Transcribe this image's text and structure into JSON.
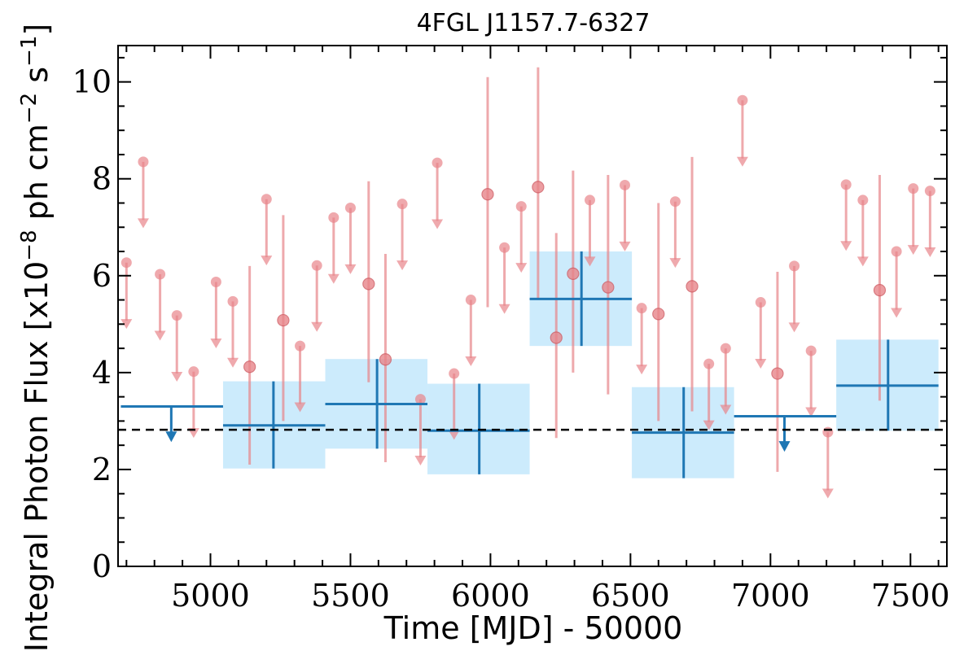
{
  "chart_data": {
    "type": "scatter",
    "title": "4FGL J1157.7-6327",
    "xlabel": "Time [MJD] - 50000",
    "ylabel": "Integral Photon Flux [x10",
    "ylabel_exp1": "−8",
    "ylabel_mid": " ph cm",
    "ylabel_exp2": "−2",
    "ylabel_end": " s",
    "ylabel_exp3": "−1",
    "ylabel_close": "]",
    "xlim": [
      4670,
      7630
    ],
    "ylim": [
      0,
      10.75
    ],
    "xticks": [
      5000,
      5500,
      6000,
      6500,
      7000,
      7500
    ],
    "yticks": [
      0,
      2,
      4,
      6,
      8,
      10
    ],
    "mean_flux": 2.82,
    "colors": {
      "short_bins": "#e8858a",
      "long_bins": "#1f77b4",
      "long_bins_fill": "#bfe6fb",
      "mean_line": "#000000"
    },
    "short_bins": {
      "detections": [
        {
          "x": 5140,
          "y": 4.12,
          "ylo": 2.1,
          "yhi": 6.2
        },
        {
          "x": 5260,
          "y": 5.08,
          "ylo": 3.0,
          "yhi": 7.25
        },
        {
          "x": 5565,
          "y": 5.83,
          "ylo": 3.8,
          "yhi": 7.95
        },
        {
          "x": 5625,
          "y": 4.27,
          "ylo": 2.15,
          "yhi": 6.45
        },
        {
          "x": 5990,
          "y": 7.68,
          "ylo": 5.35,
          "yhi": 10.1
        },
        {
          "x": 6170,
          "y": 7.83,
          "ylo": 5.5,
          "yhi": 10.3
        },
        {
          "x": 6235,
          "y": 4.72,
          "ylo": 2.65,
          "yhi": 6.88
        },
        {
          "x": 6295,
          "y": 6.04,
          "ylo": 4.0,
          "yhi": 8.17
        },
        {
          "x": 6420,
          "y": 5.76,
          "ylo": 3.55,
          "yhi": 8.08
        },
        {
          "x": 6600,
          "y": 5.21,
          "ylo": 3.0,
          "yhi": 7.5
        },
        {
          "x": 6720,
          "y": 5.78,
          "ylo": 3.2,
          "yhi": 8.45
        },
        {
          "x": 7025,
          "y": 3.98,
          "ylo": 1.95,
          "yhi": 6.08
        },
        {
          "x": 7390,
          "y": 5.7,
          "ylo": 3.42,
          "yhi": 8.08
        }
      ],
      "upper_limits": [
        {
          "x": 4700,
          "y": 6.27
        },
        {
          "x": 4760,
          "y": 8.35
        },
        {
          "x": 4820,
          "y": 6.03
        },
        {
          "x": 4880,
          "y": 5.18
        },
        {
          "x": 4940,
          "y": 4.02
        },
        {
          "x": 5020,
          "y": 5.87
        },
        {
          "x": 5080,
          "y": 5.47
        },
        {
          "x": 5200,
          "y": 7.58
        },
        {
          "x": 5320,
          "y": 4.55
        },
        {
          "x": 5380,
          "y": 6.21
        },
        {
          "x": 5440,
          "y": 7.2
        },
        {
          "x": 5500,
          "y": 7.4
        },
        {
          "x": 5685,
          "y": 7.48
        },
        {
          "x": 5750,
          "y": 3.45
        },
        {
          "x": 5810,
          "y": 8.33
        },
        {
          "x": 5870,
          "y": 3.98
        },
        {
          "x": 5930,
          "y": 5.5
        },
        {
          "x": 6050,
          "y": 6.58
        },
        {
          "x": 6110,
          "y": 7.43
        },
        {
          "x": 6355,
          "y": 7.56
        },
        {
          "x": 6480,
          "y": 7.87
        },
        {
          "x": 6540,
          "y": 5.33
        },
        {
          "x": 6660,
          "y": 7.53
        },
        {
          "x": 6780,
          "y": 4.18
        },
        {
          "x": 6840,
          "y": 4.5
        },
        {
          "x": 6900,
          "y": 9.62
        },
        {
          "x": 6965,
          "y": 5.45
        },
        {
          "x": 7085,
          "y": 6.2
        },
        {
          "x": 7145,
          "y": 4.45
        },
        {
          "x": 7205,
          "y": 2.77
        },
        {
          "x": 7270,
          "y": 7.88
        },
        {
          "x": 7330,
          "y": 7.56
        },
        {
          "x": 7450,
          "y": 6.5
        },
        {
          "x": 7510,
          "y": 7.8
        },
        {
          "x": 7570,
          "y": 7.75
        }
      ]
    },
    "long_bins": {
      "detections": [
        {
          "x0": 5045,
          "x1": 5410,
          "xc": 5225,
          "y": 2.91,
          "ylo": 2.02,
          "yhi": 3.82
        },
        {
          "x0": 5410,
          "x1": 5775,
          "xc": 5595,
          "y": 3.35,
          "ylo": 2.43,
          "yhi": 4.28
        },
        {
          "x0": 5775,
          "x1": 6140,
          "xc": 5960,
          "y": 2.8,
          "ylo": 1.9,
          "yhi": 3.77
        },
        {
          "x0": 6140,
          "x1": 6505,
          "xc": 6325,
          "y": 5.52,
          "ylo": 4.55,
          "yhi": 6.5
        },
        {
          "x0": 6505,
          "x1": 6870,
          "xc": 6690,
          "y": 2.76,
          "ylo": 1.82,
          "yhi": 3.7
        },
        {
          "x0": 7235,
          "x1": 7600,
          "xc": 7420,
          "y": 3.73,
          "ylo": 2.8,
          "yhi": 4.68
        }
      ],
      "upper_limits": [
        {
          "x0": 4680,
          "x1": 5045,
          "xc": 4860,
          "y": 3.3
        },
        {
          "x0": 6870,
          "x1": 7235,
          "xc": 7050,
          "y": 3.1
        }
      ]
    }
  }
}
